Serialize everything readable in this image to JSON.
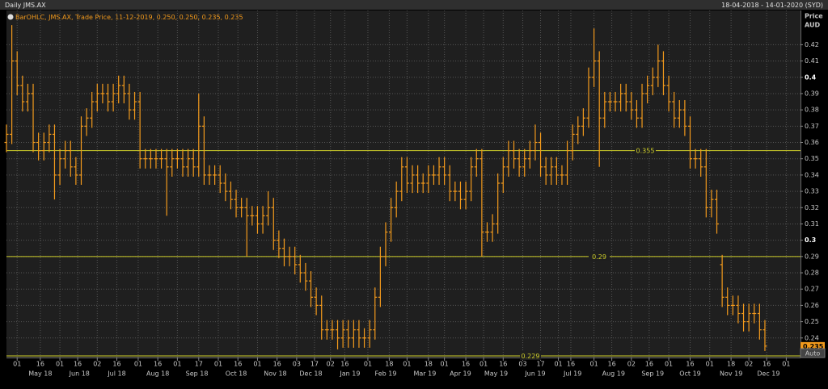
{
  "chart_data": {
    "type": "ohlc",
    "title": "Daily JMS.AX",
    "date_range": "18-04-2018 - 14-01-2020 (SYD)",
    "legend": "BarOHLC, JMS.AX, Trade Price, 11-12-2019, 0.250, 0.250, 0.235, 0.235",
    "y_axis_label": "Price",
    "y_axis_unit": "AUD",
    "scale_mode": "Auto",
    "last_price": 0.235,
    "color": "#f39a1c",
    "hline_color": "#cfcf2a",
    "grid": true,
    "xlim": [
      0,
      446
    ],
    "ylim": [
      0.228,
      0.441
    ],
    "yticks": [
      0.42,
      0.41,
      0.4,
      0.39,
      0.38,
      0.37,
      0.36,
      0.35,
      0.34,
      0.33,
      0.32,
      0.31,
      0.3,
      0.29,
      0.28,
      0.27,
      0.26,
      0.25,
      0.24
    ],
    "hlines": [
      0.355,
      0.29,
      0.229
    ],
    "xticks": [
      {
        "value": 6,
        "label": "01"
      },
      {
        "value": 19,
        "label": "16"
      },
      {
        "value": 30,
        "label": "01"
      },
      {
        "value": 40,
        "label": "16"
      },
      {
        "value": 51,
        "label": "02"
      },
      {
        "value": 62,
        "label": "16"
      },
      {
        "value": 74,
        "label": "01"
      },
      {
        "value": 85,
        "label": "16"
      },
      {
        "value": 96,
        "label": "01"
      },
      {
        "value": 108,
        "label": "17"
      },
      {
        "value": 119,
        "label": "01"
      },
      {
        "value": 130,
        "label": "16"
      },
      {
        "value": 141,
        "label": "01"
      },
      {
        "value": 152,
        "label": "16"
      },
      {
        "value": 163,
        "label": "03"
      },
      {
        "value": 173,
        "label": "17"
      },
      {
        "value": 182,
        "label": "02"
      },
      {
        "value": 190,
        "label": "16"
      },
      {
        "value": 203,
        "label": "01"
      },
      {
        "value": 215,
        "label": "18"
      },
      {
        "value": 225,
        "label": "01"
      },
      {
        "value": 237,
        "label": "18"
      },
      {
        "value": 246,
        "label": "01"
      },
      {
        "value": 258,
        "label": "16"
      },
      {
        "value": 268,
        "label": "01"
      },
      {
        "value": 279,
        "label": "16"
      },
      {
        "value": 290,
        "label": "03"
      },
      {
        "value": 300,
        "label": "17"
      },
      {
        "value": 310,
        "label": "01"
      },
      {
        "value": 317,
        "label": "16"
      },
      {
        "value": 330,
        "label": "01"
      },
      {
        "value": 340,
        "label": "16"
      },
      {
        "value": 351,
        "label": "02"
      },
      {
        "value": 361,
        "label": "16"
      },
      {
        "value": 372,
        "label": "01"
      },
      {
        "value": 384,
        "label": "16"
      },
      {
        "value": 395,
        "label": "01"
      },
      {
        "value": 407,
        "label": "18"
      },
      {
        "value": 417,
        "label": "02"
      },
      {
        "value": 427,
        "label": "16"
      },
      {
        "value": 438,
        "label": "01"
      }
    ],
    "x_month_ticks": [
      {
        "value": 19,
        "label": "May 18"
      },
      {
        "value": 41,
        "label": "Jun 18"
      },
      {
        "value": 62,
        "label": "Jul 18"
      },
      {
        "value": 85,
        "label": "Aug 18"
      },
      {
        "value": 107,
        "label": "Sep 18"
      },
      {
        "value": 129,
        "label": "Oct 18"
      },
      {
        "value": 151,
        "label": "Nov 18"
      },
      {
        "value": 171,
        "label": "Dec 18"
      },
      {
        "value": 193,
        "label": "Jan 19"
      },
      {
        "value": 213,
        "label": "Feb 19"
      },
      {
        "value": 235,
        "label": "Mar 19"
      },
      {
        "value": 255,
        "label": "Apr 19"
      },
      {
        "value": 275,
        "label": "May 19"
      },
      {
        "value": 297,
        "label": "Jun 19"
      },
      {
        "value": 318,
        "label": "Jul 19"
      },
      {
        "value": 341,
        "label": "Aug 19"
      },
      {
        "value": 363,
        "label": "Sep 19"
      },
      {
        "value": 384,
        "label": "Oct 19"
      },
      {
        "value": 407,
        "label": "Nov 19"
      },
      {
        "value": 428,
        "label": "Dec 19"
      }
    ],
    "x": [
      0,
      3,
      6,
      9,
      12,
      15,
      18,
      21,
      24,
      27,
      30,
      33,
      36,
      39,
      42,
      45,
      48,
      51,
      54,
      57,
      60,
      63,
      66,
      69,
      72,
      75,
      78,
      81,
      84,
      87,
      90,
      93,
      96,
      99,
      102,
      105,
      108,
      111,
      114,
      117,
      120,
      123,
      126,
      129,
      132,
      135,
      138,
      141,
      144,
      147,
      150,
      153,
      156,
      159,
      162,
      165,
      168,
      171,
      174,
      177,
      180,
      183,
      186,
      189,
      192,
      195,
      198,
      201,
      204,
      207,
      210,
      213,
      216,
      219,
      222,
      225,
      228,
      231,
      234,
      237,
      240,
      243,
      246,
      249,
      252,
      255,
      258,
      261,
      264,
      267,
      270,
      273,
      276,
      279,
      282,
      285,
      288,
      291,
      294,
      297,
      300,
      303,
      306,
      309,
      312,
      315,
      318,
      321,
      324,
      327,
      330,
      333,
      336,
      339,
      342,
      345,
      348,
      351,
      354,
      357,
      360,
      363,
      366,
      369,
      372,
      375,
      378,
      381,
      384,
      387,
      390,
      393,
      396,
      399,
      402,
      405,
      408,
      411,
      414,
      417,
      420,
      423,
      426
    ],
    "open": [
      0.36,
      0.365,
      0.41,
      0.395,
      0.385,
      0.39,
      0.36,
      0.355,
      0.36,
      0.365,
      0.34,
      0.35,
      0.355,
      0.345,
      0.34,
      0.37,
      0.375,
      0.385,
      0.39,
      0.39,
      0.385,
      0.39,
      0.395,
      0.39,
      0.38,
      0.385,
      0.35,
      0.35,
      0.35,
      0.35,
      0.35,
      0.345,
      0.35,
      0.35,
      0.345,
      0.35,
      0.345,
      0.37,
      0.34,
      0.34,
      0.34,
      0.335,
      0.33,
      0.325,
      0.32,
      0.32,
      0.315,
      0.315,
      0.31,
      0.315,
      0.32,
      0.3,
      0.295,
      0.29,
      0.29,
      0.285,
      0.28,
      0.275,
      0.265,
      0.26,
      0.245,
      0.245,
      0.245,
      0.24,
      0.245,
      0.24,
      0.245,
      0.24,
      0.24,
      0.245,
      0.265,
      0.29,
      0.305,
      0.32,
      0.33,
      0.345,
      0.335,
      0.34,
      0.335,
      0.335,
      0.34,
      0.34,
      0.345,
      0.34,
      0.33,
      0.33,
      0.325,
      0.33,
      0.345,
      0.35,
      0.305,
      0.305,
      0.31,
      0.335,
      0.345,
      0.355,
      0.35,
      0.345,
      0.35,
      0.355,
      0.36,
      0.345,
      0.34,
      0.345,
      0.34,
      0.34,
      0.355,
      0.365,
      0.37,
      0.375,
      0.4,
      0.41,
      0.375,
      0.385,
      0.385,
      0.385,
      0.39,
      0.385,
      0.38,
      0.375,
      0.39,
      0.395,
      0.4,
      0.41,
      0.395,
      0.385,
      0.375,
      0.38,
      0.37,
      0.35,
      0.35,
      0.345,
      0.32,
      0.325,
      0.285,
      0.265,
      0.26,
      0.26,
      0.255,
      0.25,
      0.255,
      0.255,
      0.245
    ],
    "high": [
      0.371,
      0.432,
      0.416,
      0.401,
      0.396,
      0.396,
      0.366,
      0.366,
      0.371,
      0.371,
      0.356,
      0.361,
      0.361,
      0.351,
      0.376,
      0.381,
      0.391,
      0.396,
      0.396,
      0.396,
      0.396,
      0.401,
      0.401,
      0.396,
      0.391,
      0.391,
      0.356,
      0.356,
      0.356,
      0.356,
      0.356,
      0.356,
      0.356,
      0.356,
      0.356,
      0.356,
      0.39,
      0.376,
      0.346,
      0.346,
      0.346,
      0.341,
      0.336,
      0.331,
      0.326,
      0.326,
      0.321,
      0.321,
      0.321,
      0.33,
      0.326,
      0.306,
      0.301,
      0.296,
      0.296,
      0.291,
      0.286,
      0.281,
      0.271,
      0.266,
      0.251,
      0.251,
      0.251,
      0.251,
      0.251,
      0.251,
      0.251,
      0.246,
      0.251,
      0.271,
      0.296,
      0.311,
      0.326,
      0.336,
      0.351,
      0.351,
      0.346,
      0.346,
      0.341,
      0.346,
      0.346,
      0.351,
      0.351,
      0.346,
      0.336,
      0.336,
      0.336,
      0.351,
      0.356,
      0.356,
      0.311,
      0.316,
      0.341,
      0.351,
      0.361,
      0.361,
      0.356,
      0.356,
      0.361,
      0.371,
      0.366,
      0.351,
      0.351,
      0.351,
      0.346,
      0.361,
      0.371,
      0.376,
      0.381,
      0.406,
      0.43,
      0.416,
      0.391,
      0.391,
      0.391,
      0.396,
      0.396,
      0.391,
      0.386,
      0.396,
      0.401,
      0.406,
      0.42,
      0.416,
      0.401,
      0.391,
      0.386,
      0.386,
      0.376,
      0.356,
      0.356,
      0.356,
      0.331,
      0.331,
      0.291,
      0.271,
      0.266,
      0.266,
      0.261,
      0.261,
      0.261,
      0.261,
      0.251
    ],
    "low": [
      0.354,
      0.359,
      0.389,
      0.379,
      0.379,
      0.354,
      0.349,
      0.349,
      0.354,
      0.325,
      0.334,
      0.344,
      0.339,
      0.334,
      0.334,
      0.364,
      0.369,
      0.379,
      0.384,
      0.379,
      0.379,
      0.384,
      0.384,
      0.374,
      0.374,
      0.344,
      0.344,
      0.344,
      0.344,
      0.344,
      0.315,
      0.339,
      0.344,
      0.339,
      0.339,
      0.339,
      0.339,
      0.334,
      0.334,
      0.334,
      0.329,
      0.324,
      0.319,
      0.314,
      0.314,
      0.29,
      0.309,
      0.304,
      0.304,
      0.309,
      0.294,
      0.289,
      0.284,
      0.284,
      0.279,
      0.274,
      0.269,
      0.259,
      0.254,
      0.239,
      0.239,
      0.239,
      0.233,
      0.234,
      0.234,
      0.234,
      0.234,
      0.234,
      0.234,
      0.239,
      0.259,
      0.284,
      0.299,
      0.314,
      0.324,
      0.329,
      0.329,
      0.329,
      0.329,
      0.329,
      0.334,
      0.334,
      0.334,
      0.324,
      0.324,
      0.319,
      0.319,
      0.324,
      0.339,
      0.29,
      0.299,
      0.299,
      0.304,
      0.329,
      0.339,
      0.344,
      0.339,
      0.339,
      0.344,
      0.349,
      0.339,
      0.334,
      0.334,
      0.334,
      0.334,
      0.334,
      0.349,
      0.359,
      0.364,
      0.369,
      0.394,
      0.345,
      0.369,
      0.379,
      0.379,
      0.379,
      0.379,
      0.374,
      0.369,
      0.369,
      0.384,
      0.389,
      0.394,
      0.389,
      0.379,
      0.369,
      0.369,
      0.364,
      0.344,
      0.344,
      0.339,
      0.314,
      0.314,
      0.304,
      0.259,
      0.254,
      0.254,
      0.249,
      0.244,
      0.244,
      0.249,
      0.239,
      0.232
    ],
    "close": [
      0.365,
      0.41,
      0.395,
      0.385,
      0.39,
      0.36,
      0.355,
      0.36,
      0.365,
      0.34,
      0.35,
      0.355,
      0.345,
      0.34,
      0.37,
      0.375,
      0.385,
      0.39,
      0.39,
      0.385,
      0.39,
      0.395,
      0.39,
      0.38,
      0.385,
      0.35,
      0.35,
      0.35,
      0.35,
      0.35,
      0.345,
      0.35,
      0.35,
      0.345,
      0.35,
      0.345,
      0.37,
      0.34,
      0.34,
      0.34,
      0.335,
      0.33,
      0.325,
      0.32,
      0.32,
      0.315,
      0.315,
      0.31,
      0.315,
      0.32,
      0.3,
      0.295,
      0.29,
      0.29,
      0.285,
      0.28,
      0.275,
      0.265,
      0.26,
      0.245,
      0.245,
      0.245,
      0.24,
      0.245,
      0.24,
      0.245,
      0.24,
      0.24,
      0.245,
      0.265,
      0.29,
      0.305,
      0.32,
      0.33,
      0.345,
      0.335,
      0.34,
      0.335,
      0.335,
      0.34,
      0.34,
      0.345,
      0.34,
      0.33,
      0.33,
      0.325,
      0.33,
      0.345,
      0.35,
      0.305,
      0.305,
      0.31,
      0.335,
      0.345,
      0.355,
      0.35,
      0.345,
      0.35,
      0.355,
      0.36,
      0.345,
      0.34,
      0.345,
      0.34,
      0.34,
      0.355,
      0.365,
      0.37,
      0.375,
      0.4,
      0.41,
      0.375,
      0.385,
      0.385,
      0.385,
      0.39,
      0.385,
      0.38,
      0.375,
      0.39,
      0.395,
      0.4,
      0.41,
      0.395,
      0.385,
      0.375,
      0.38,
      0.37,
      0.35,
      0.35,
      0.345,
      0.32,
      0.325,
      0.31,
      0.265,
      0.26,
      0.26,
      0.255,
      0.25,
      0.255,
      0.255,
      0.245,
      0.235
    ]
  }
}
